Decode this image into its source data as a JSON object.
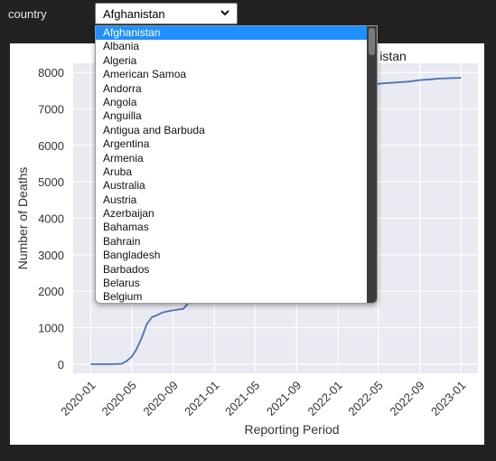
{
  "filter": {
    "label": "country",
    "selected": "Afghanistan",
    "options": [
      "Afghanistan",
      "Albania",
      "Algeria",
      "American Samoa",
      "Andorra",
      "Angola",
      "Anguilla",
      "Antigua and Barbuda",
      "Argentina",
      "Armenia",
      "Aruba",
      "Australia",
      "Austria",
      "Azerbaijan",
      "Bahamas",
      "Bahrain",
      "Bangladesh",
      "Barbados",
      "Belarus",
      "Belgium"
    ]
  },
  "chart_data": {
    "type": "line",
    "title": "Afghanistan",
    "title_visible": "istan",
    "xlabel": "Reporting Period",
    "ylabel": "Number of Deaths",
    "ylim": [
      -250,
      8250
    ],
    "yticks": [
      0,
      1000,
      2000,
      3000,
      4000,
      5000,
      6000,
      7000,
      8000
    ],
    "xticks": [
      "2020-01",
      "2020-05",
      "2020-09",
      "2021-01",
      "2021-05",
      "2021-09",
      "2022-01",
      "2022-05",
      "2022-09",
      "2023-01"
    ],
    "xlim": [
      "2019-11-10",
      "2023-02-20"
    ],
    "grid": true,
    "line_color": "#4c72b0",
    "x": [
      "2020-01-01",
      "2020-02-01",
      "2020-03-01",
      "2020-04-01",
      "2020-04-15",
      "2020-05-01",
      "2020-05-15",
      "2020-06-01",
      "2020-06-15",
      "2020-07-01",
      "2020-07-10",
      "2020-08-01",
      "2020-09-01",
      "2020-10-01",
      "2022-05-01",
      "2022-06-01",
      "2022-07-01",
      "2022-08-01",
      "2022-09-01",
      "2022-10-01",
      "2022-11-01",
      "2022-12-01",
      "2023-01-01"
    ],
    "y": [
      0,
      0,
      0,
      10,
      80,
      200,
      400,
      750,
      1100,
      1300,
      1320,
      1420,
      1480,
      1520,
      7690,
      7710,
      7730,
      7750,
      7790,
      7810,
      7830,
      7840,
      7850
    ]
  },
  "colors": {
    "background": "#222222",
    "plot_bg": "#eaeaf2",
    "selected_bg": "#1e90ff"
  },
  "icons": {
    "select": "chevron-down-icon"
  }
}
